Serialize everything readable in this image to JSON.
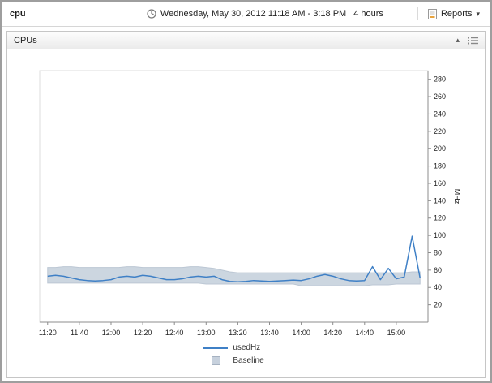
{
  "window": {
    "title": "cpu"
  },
  "toolbar": {
    "time_range": "Wednesday, May 30, 2012 11:18 AM - 3:18 PM",
    "duration": "4 hours",
    "reports_label": "Reports"
  },
  "panel": {
    "title": "CPUs"
  },
  "colors": {
    "line": "#3f80c6",
    "band_fill": "#c7d1dd",
    "band_edge": "#bcc7d4",
    "axis": "#8c8c8c",
    "tick_text": "#222222"
  },
  "chart_data": {
    "type": "line",
    "title": "CPUs",
    "xlabel": "",
    "ylabel": "MHz",
    "ylim": [
      0,
      290
    ],
    "y_ticks": [
      20,
      40,
      60,
      80,
      100,
      120,
      140,
      160,
      180,
      200,
      220,
      240,
      260,
      280
    ],
    "x_domain_minutes": [
      -5,
      240
    ],
    "x_ticks": [
      {
        "t": 0,
        "label": "11:20"
      },
      {
        "t": 20,
        "label": "11:40"
      },
      {
        "t": 40,
        "label": "12:00"
      },
      {
        "t": 60,
        "label": "12:20"
      },
      {
        "t": 80,
        "label": "12:40"
      },
      {
        "t": 100,
        "label": "13:00"
      },
      {
        "t": 120,
        "label": "13:20"
      },
      {
        "t": 140,
        "label": "13:40"
      },
      {
        "t": 160,
        "label": "14:00"
      },
      {
        "t": 180,
        "label": "14:20"
      },
      {
        "t": 200,
        "label": "14:40"
      },
      {
        "t": 220,
        "label": "15:00"
      }
    ],
    "minutes": [
      0,
      5,
      10,
      15,
      20,
      25,
      30,
      35,
      40,
      45,
      50,
      55,
      60,
      65,
      70,
      75,
      80,
      85,
      90,
      95,
      100,
      105,
      110,
      115,
      120,
      125,
      130,
      135,
      140,
      145,
      150,
      155,
      160,
      165,
      170,
      175,
      180,
      185,
      190,
      195,
      200,
      205,
      210,
      215,
      220,
      225,
      230,
      235
    ],
    "series": [
      {
        "name": "usedHz",
        "type": "line",
        "color": "#3f80c6",
        "values": [
          53,
          54,
          53,
          51,
          49,
          48,
          47.5,
          48,
          49,
          52,
          53,
          52,
          54,
          53,
          51,
          49,
          49,
          50,
          52,
          53,
          52,
          53,
          49,
          47,
          46.5,
          47,
          48,
          47.5,
          47,
          47.5,
          48,
          48.5,
          48,
          50,
          53,
          55,
          53,
          50,
          48,
          47.5,
          48,
          64,
          49,
          62,
          50,
          52,
          99,
          51
        ]
      },
      {
        "name": "Baseline",
        "type": "band",
        "color": "#c7d1dd",
        "edge_color": "#bcc7d4",
        "upper": [
          63,
          63,
          64,
          64,
          63,
          63,
          63,
          63,
          63,
          63,
          64,
          64,
          63,
          63,
          63,
          63,
          63,
          63,
          64,
          64,
          63,
          62,
          60,
          58,
          57,
          57,
          57,
          57,
          57,
          57,
          57,
          57,
          57,
          57,
          57,
          57,
          57,
          57,
          57,
          57,
          57,
          57,
          57,
          57,
          57,
          57,
          58,
          58
        ],
        "lower": [
          45,
          45,
          45,
          45,
          45,
          45,
          45,
          45,
          45,
          45,
          45,
          45,
          45,
          45,
          45,
          45,
          45,
          45,
          45,
          45,
          44,
          44,
          44,
          44,
          44,
          44,
          44,
          44,
          44,
          44,
          44,
          44,
          42,
          42,
          42,
          42,
          42,
          42,
          42,
          42,
          42,
          43,
          43,
          43,
          44,
          44,
          44,
          44
        ]
      }
    ],
    "legend_position": "bottom",
    "grid": false
  }
}
